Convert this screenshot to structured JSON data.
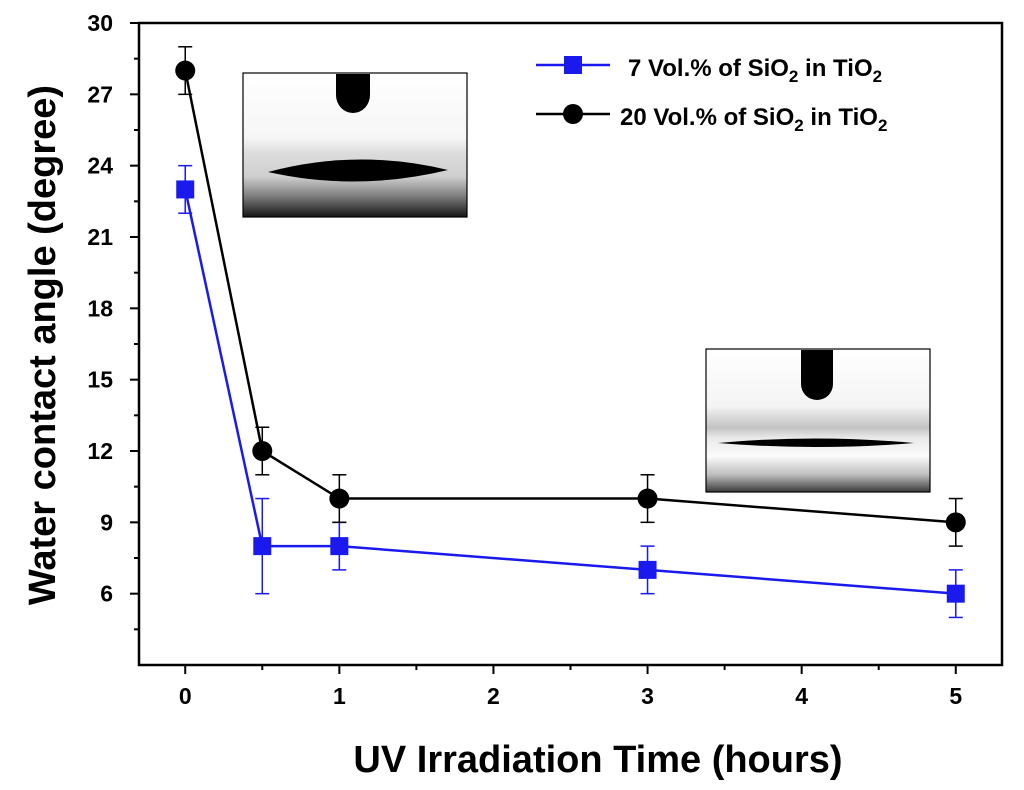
{
  "chart_data": {
    "type": "line",
    "title": "",
    "xlabel": "UV Irradiation Time (hours)",
    "ylabel": "Water contact angle (degree)",
    "xlim": [
      -0.3,
      5.3
    ],
    "ylim": [
      3,
      30
    ],
    "xticks": [
      0,
      1,
      2,
      3,
      4,
      5
    ],
    "yticks": [
      6,
      9,
      12,
      15,
      18,
      21,
      24,
      27,
      30
    ],
    "legend_position": "top-right",
    "series": [
      {
        "name": "7 Vol.% of SiO2 in TiO2",
        "legend": {
          "prefix": "7 Vol.% of SiO",
          "sub1": "2",
          "mid": " in TiO",
          "sub2": "2"
        },
        "color": "#1a1aee",
        "marker": "square",
        "x": [
          0,
          0.5,
          1,
          3,
          5
        ],
        "values": [
          23,
          8,
          8,
          7,
          6
        ],
        "errors": [
          1,
          2,
          1,
          1,
          1
        ]
      },
      {
        "name": "20 Vol.% of SiO2 in TiO2",
        "legend": {
          "prefix": "20 Vol.% of SiO",
          "sub1": "2",
          "mid": " in TiO",
          "sub2": "2"
        },
        "color": "#000000",
        "marker": "circle",
        "x": [
          0,
          0.5,
          1,
          3,
          5
        ],
        "values": [
          28,
          12,
          10,
          10,
          9
        ],
        "errors": [
          1,
          1,
          1,
          1,
          1
        ]
      }
    ]
  },
  "insets": [
    {
      "name": "inset-droplet-initial",
      "depicts": "high-contact-angle-droplet"
    },
    {
      "name": "inset-droplet-spread",
      "depicts": "low-contact-angle-droplet"
    }
  ]
}
